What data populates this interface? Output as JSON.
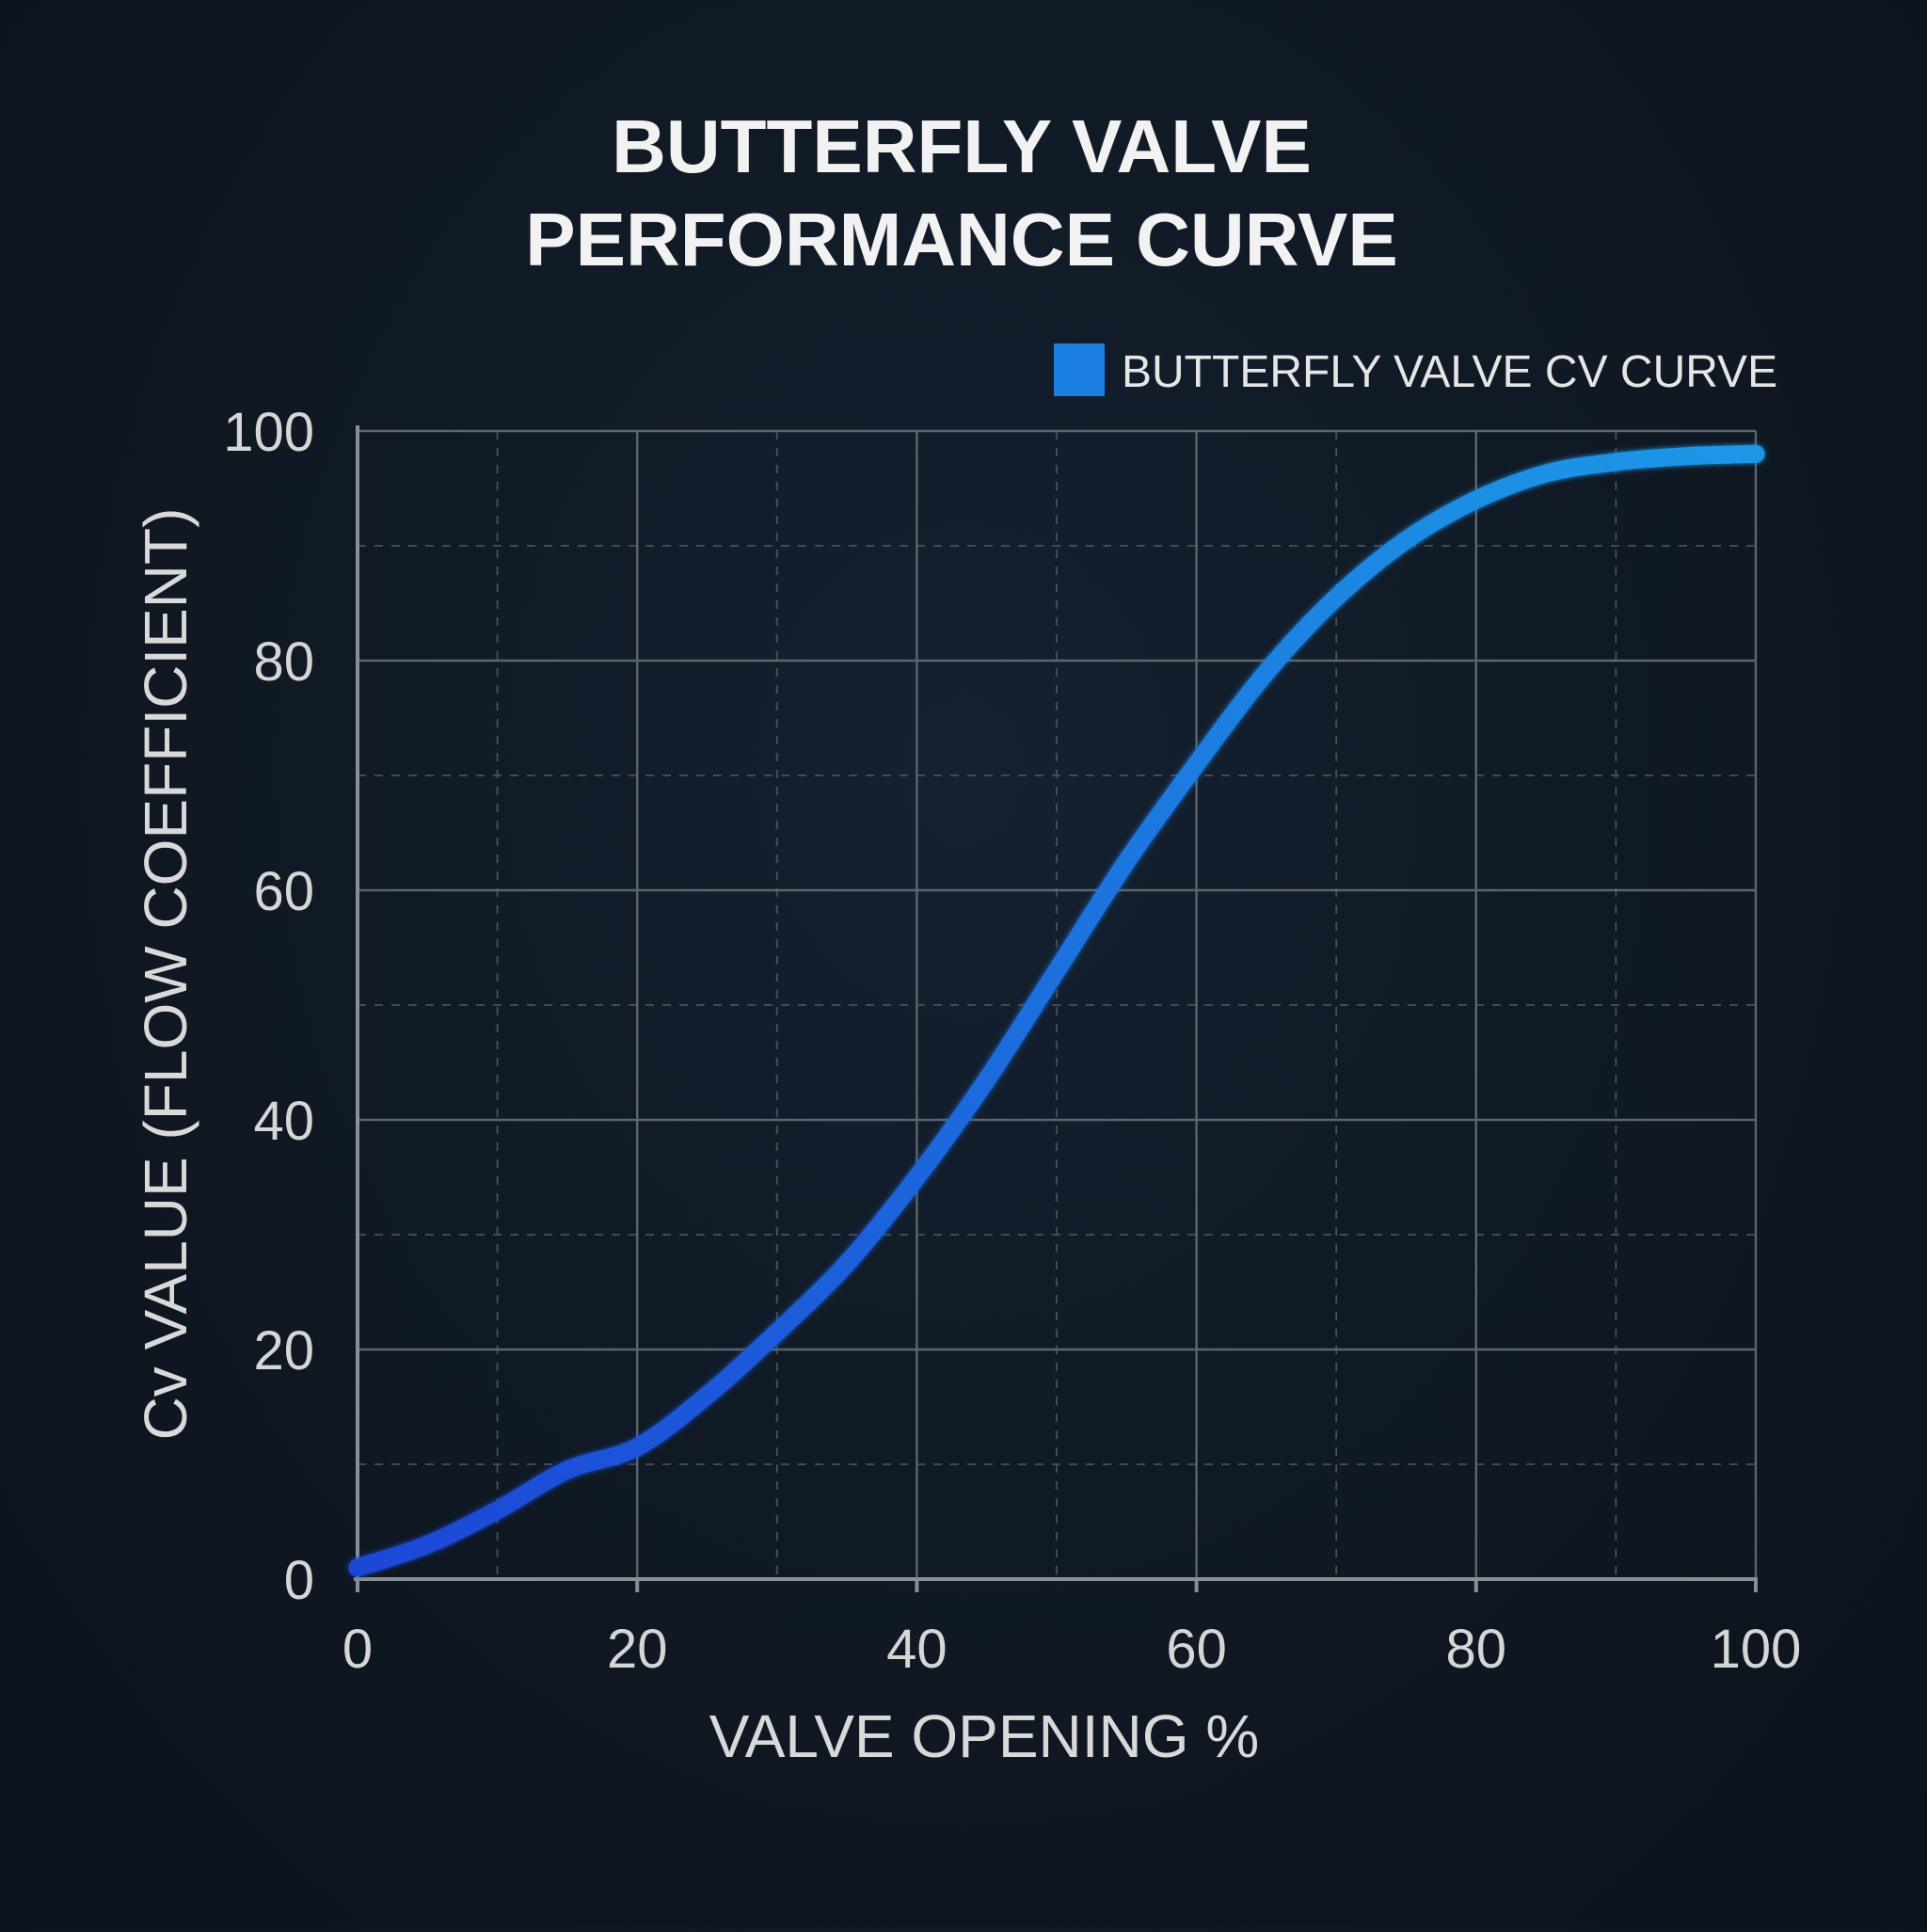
{
  "chart_data": {
    "type": "line",
    "title_lines": [
      "BUTTERFLY VALVE",
      "PERFORMANCE CURVE"
    ],
    "xlabel": "VALVE OPENING %",
    "ylabel": "Cv VALUE  (FLOW COEFFICIENT)",
    "xlim": [
      0,
      100
    ],
    "ylim": [
      0,
      100
    ],
    "x_ticks": [
      0,
      20,
      40,
      60,
      80,
      100
    ],
    "y_ticks": [
      0,
      20,
      40,
      60,
      80,
      100
    ],
    "minor_grid": true,
    "legend": {
      "position": "top-right",
      "entries": [
        "BUTTERFLY VALVE CV CURVE"
      ]
    },
    "series": [
      {
        "name": "BUTTERFLY VALVE CV CURVE",
        "color_start": "#1c47d6",
        "color_end": "#1f97e6",
        "x": [
          0,
          5,
          10,
          15,
          20,
          25,
          30,
          35,
          40,
          45,
          50,
          55,
          60,
          65,
          70,
          75,
          80,
          85,
          90,
          95,
          100
        ],
        "y": [
          1,
          3,
          6,
          9.5,
          11.5,
          16,
          21.5,
          27.5,
          35,
          43.5,
          53,
          62.5,
          71,
          79,
          85.5,
          90.5,
          94,
          96.3,
          97.3,
          97.8,
          98
        ]
      }
    ]
  }
}
